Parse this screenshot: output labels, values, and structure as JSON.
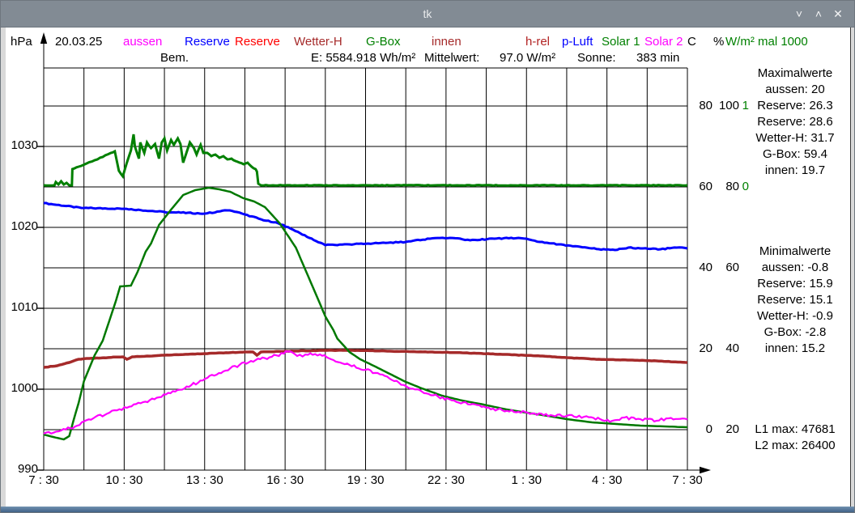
{
  "window": {
    "title": "tk",
    "controls": {
      "minimize": "˅",
      "maximize": "˄",
      "close": "✕"
    }
  },
  "header": {
    "unit_left": "hPa",
    "date": "20.03.25",
    "legend": [
      {
        "label": "aussen",
        "color": "#ff00ff"
      },
      {
        "label": "Reserve",
        "color": "#0000ff"
      },
      {
        "label": "Reserve",
        "color": "#ff0000"
      },
      {
        "label": "Wetter-H",
        "color": "#a52a2a"
      },
      {
        "label": "G-Box",
        "color": "#008000"
      },
      {
        "label": "innen",
        "color": "#a52a2a"
      },
      {
        "label": "h-rel",
        "color": "#b22222"
      },
      {
        "label": "p-Luft",
        "color": "#0000ff"
      },
      {
        "label": "Solar 1",
        "color": "#008000"
      },
      {
        "label": "Solar 2",
        "color": "#ff00ff"
      },
      {
        "label": "C",
        "color": "#000000"
      },
      {
        "label": "%",
        "color": "#000000"
      },
      {
        "label": "W/m² mal 1000",
        "color": "#008000"
      }
    ],
    "row2": {
      "bem": "Bem.",
      "energy": "E: 5584.918 Wh/m²",
      "mittelwert_label": "Mittelwert:",
      "mittelwert_value": "97.0 W/m²",
      "sonne_label": "Sonne:",
      "sonne_value": "383 min"
    }
  },
  "right_panel": {
    "max_title": "Maximalwerte",
    "max_values": [
      "aussen: 20",
      "Reserve: 26.3",
      "Reserve: 28.6",
      "Wetter-H: 31.7",
      "G-Box: 59.4",
      "innen: 19.7"
    ],
    "min_title": "Minimalwerte",
    "min_values": [
      "aussen: -0.8",
      "Reserve: 15.9",
      "Reserve: 15.1",
      "Wetter-H: -0.9",
      "G-Box: -2.8",
      "innen: 15.2"
    ],
    "l1": "L1 max: 47681",
    "l2": "L2 max: 26400"
  },
  "chart_data": {
    "type": "line",
    "grid": true,
    "x_axis": {
      "unit": "time",
      "range_hours": [
        7.5,
        31.5
      ],
      "labels": [
        "7 : 30",
        "10 : 30",
        "13 : 30",
        "16 : 30",
        "19 : 30",
        "22 : 30",
        "1 : 30",
        "4 : 30",
        "7 : 30"
      ],
      "label_hours": [
        7.5,
        10.5,
        13.5,
        16.5,
        19.5,
        22.5,
        25.5,
        28.5,
        31.5
      ],
      "gridline_step_hours": 1.5
    },
    "y_left": {
      "unit": "hPa",
      "ticks": [
        990,
        1000,
        1010,
        1020,
        1030
      ],
      "range": [
        990,
        1039.5
      ],
      "grid_step": 5
    },
    "y_right": {
      "c_axis": {
        "unit": "C",
        "ticks": [
          0,
          20,
          40,
          60,
          80
        ]
      },
      "pct_axis": {
        "unit": "%",
        "ticks": [
          20,
          40,
          60,
          80,
          100
        ]
      },
      "solar_axis": {
        "unit": "W/m² mal 1000",
        "ticks": [
          0,
          1
        ],
        "color": "#008000"
      }
    },
    "right_scale_rows": [
      {
        "c": 80,
        "pct": 100,
        "solar": "1"
      },
      {
        "c": 60,
        "pct": 80,
        "solar": "0"
      },
      {
        "c": 40,
        "pct": 60,
        "solar": ""
      },
      {
        "c": 20,
        "pct": 40,
        "solar": ""
      },
      {
        "c": 0,
        "pct": 20,
        "solar": ""
      }
    ],
    "series": [
      {
        "id": "p-luft",
        "name": "p-Luft",
        "axis": "hpa",
        "color": "#0000ff",
        "width": 3,
        "jitter": 0.06,
        "points": [
          [
            7.5,
            1023.0
          ],
          [
            8.9,
            1022.4
          ],
          [
            10.5,
            1022.3
          ],
          [
            12.0,
            1021.9
          ],
          [
            13.5,
            1021.7
          ],
          [
            14.35,
            1022.1
          ],
          [
            14.7,
            1021.9
          ],
          [
            15.0,
            1021.6
          ],
          [
            15.6,
            1021.0
          ],
          [
            16.25,
            1020.5
          ],
          [
            16.8,
            1019.7
          ],
          [
            17.4,
            1018.7
          ],
          [
            18.0,
            1017.8
          ],
          [
            18.9,
            1017.9
          ],
          [
            19.6,
            1018.0
          ],
          [
            21.0,
            1018.2
          ],
          [
            21.9,
            1018.6
          ],
          [
            22.65,
            1018.7
          ],
          [
            23.4,
            1018.4
          ],
          [
            24.3,
            1018.6
          ],
          [
            25.2,
            1018.7
          ],
          [
            25.6,
            1018.5
          ],
          [
            26.0,
            1018.2
          ],
          [
            26.7,
            1017.9
          ],
          [
            27.5,
            1017.6
          ],
          [
            28.2,
            1017.3
          ],
          [
            28.8,
            1017.2
          ],
          [
            29.3,
            1017.5
          ],
          [
            29.75,
            1017.4
          ],
          [
            30.5,
            1017.3
          ],
          [
            31.1,
            1017.5
          ],
          [
            31.5,
            1017.4
          ]
        ]
      },
      {
        "id": "innen",
        "name": "innen",
        "axis": "c",
        "color": "#a52a2a",
        "width": 3.5,
        "jitter": 0.05,
        "points": [
          [
            7.5,
            15.4
          ],
          [
            8.0,
            15.8
          ],
          [
            8.45,
            16.6
          ],
          [
            8.8,
            17.4
          ],
          [
            9.2,
            17.6
          ],
          [
            10.45,
            18.0
          ],
          [
            10.6,
            17.4
          ],
          [
            10.8,
            18.0
          ],
          [
            12.0,
            18.4
          ],
          [
            13.5,
            18.8
          ],
          [
            15.0,
            19.2
          ],
          [
            15.3,
            19.2
          ],
          [
            15.45,
            18.4
          ],
          [
            15.6,
            19.2
          ],
          [
            16.55,
            19.4
          ],
          [
            18.0,
            19.6
          ],
          [
            19.2,
            19.6
          ],
          [
            20.4,
            19.4
          ],
          [
            21.9,
            19.2
          ],
          [
            23.1,
            19.0
          ],
          [
            24.6,
            18.6
          ],
          [
            26.1,
            18.2
          ],
          [
            27.0,
            17.8
          ],
          [
            28.2,
            17.4
          ],
          [
            29.45,
            17.2
          ],
          [
            30.35,
            17.0
          ],
          [
            31.5,
            16.6
          ]
        ]
      },
      {
        "id": "g-box",
        "name": "G-Box",
        "axis": "c",
        "color": "#007800",
        "width": 2.5,
        "jitter": 0,
        "points": [
          [
            7.5,
            -1.2
          ],
          [
            7.85,
            -1.8
          ],
          [
            8.25,
            -2.4
          ],
          [
            8.45,
            -1.6
          ],
          [
            8.6,
            2.0
          ],
          [
            8.8,
            6.6
          ],
          [
            9.0,
            12.0
          ],
          [
            9.4,
            18.4
          ],
          [
            9.7,
            22.0
          ],
          [
            9.95,
            27.0
          ],
          [
            10.2,
            32.0
          ],
          [
            10.35,
            35.4
          ],
          [
            10.75,
            35.6
          ],
          [
            11.0,
            39.0
          ],
          [
            11.3,
            44.0
          ],
          [
            11.5,
            46.0
          ],
          [
            11.8,
            50.6
          ],
          [
            12.25,
            54.4
          ],
          [
            12.7,
            58.0
          ],
          [
            13.15,
            59.2
          ],
          [
            13.65,
            59.8
          ],
          [
            14.05,
            59.4
          ],
          [
            14.45,
            58.8
          ],
          [
            14.95,
            57.2
          ],
          [
            15.35,
            56.4
          ],
          [
            15.75,
            55.0
          ],
          [
            16.3,
            51.0
          ],
          [
            16.9,
            45.0
          ],
          [
            17.55,
            35.0
          ],
          [
            18.0,
            28.0
          ],
          [
            18.3,
            24.6
          ],
          [
            18.45,
            22.5
          ],
          [
            18.9,
            19.2
          ],
          [
            19.3,
            17.4
          ],
          [
            19.8,
            15.8
          ],
          [
            20.4,
            13.8
          ],
          [
            21.0,
            11.8
          ],
          [
            21.6,
            10.2
          ],
          [
            22.35,
            8.4
          ],
          [
            23.1,
            7.2
          ],
          [
            23.9,
            6.2
          ],
          [
            24.75,
            5.0
          ],
          [
            25.5,
            4.2
          ],
          [
            26.3,
            3.4
          ],
          [
            27.0,
            2.6
          ],
          [
            27.95,
            1.8
          ],
          [
            28.85,
            1.4
          ],
          [
            29.75,
            1.0
          ],
          [
            30.65,
            0.8
          ],
          [
            31.5,
            0.6
          ]
        ]
      },
      {
        "id": "solar-1",
        "name": "Solar 1",
        "axis": "solar",
        "color": "#008000",
        "width": 3,
        "jitter": 0.004,
        "points": [
          [
            7.5,
            0.02
          ],
          [
            7.9,
            0.02
          ],
          [
            7.95,
            0.06
          ],
          [
            8.05,
            0.03
          ],
          [
            8.15,
            0.07
          ],
          [
            8.25,
            0.03
          ],
          [
            8.35,
            0.05
          ],
          [
            8.45,
            0.02
          ],
          [
            8.55,
            0.02
          ],
          [
            8.57,
            0.22
          ],
          [
            8.8,
            0.25
          ],
          [
            9.1,
            0.29
          ],
          [
            9.4,
            0.33
          ],
          [
            9.7,
            0.37
          ],
          [
            10.0,
            0.42
          ],
          [
            10.15,
            0.44
          ],
          [
            10.3,
            0.2
          ],
          [
            10.45,
            0.13
          ],
          [
            10.6,
            0.3
          ],
          [
            10.75,
            0.45
          ],
          [
            10.85,
            0.65
          ],
          [
            10.9,
            0.5
          ],
          [
            11.05,
            0.35
          ],
          [
            11.1,
            0.55
          ],
          [
            11.25,
            0.42
          ],
          [
            11.35,
            0.55
          ],
          [
            11.5,
            0.48
          ],
          [
            11.65,
            0.53
          ],
          [
            11.8,
            0.35
          ],
          [
            11.9,
            0.55
          ],
          [
            12.0,
            0.6
          ],
          [
            12.1,
            0.45
          ],
          [
            12.25,
            0.58
          ],
          [
            12.35,
            0.52
          ],
          [
            12.5,
            0.6
          ],
          [
            12.6,
            0.53
          ],
          [
            12.7,
            0.3
          ],
          [
            12.85,
            0.45
          ],
          [
            12.95,
            0.55
          ],
          [
            13.1,
            0.48
          ],
          [
            13.2,
            0.4
          ],
          [
            13.35,
            0.52
          ],
          [
            13.45,
            0.42
          ],
          [
            13.6,
            0.42
          ],
          [
            13.75,
            0.38
          ],
          [
            13.9,
            0.4
          ],
          [
            14.05,
            0.36
          ],
          [
            14.2,
            0.38
          ],
          [
            14.35,
            0.34
          ],
          [
            14.5,
            0.35
          ],
          [
            14.65,
            0.32
          ],
          [
            14.8,
            0.3
          ],
          [
            14.95,
            0.28
          ],
          [
            15.1,
            0.3
          ],
          [
            15.25,
            0.25
          ],
          [
            15.4,
            0.22
          ],
          [
            15.45,
            0.19
          ],
          [
            15.5,
            0.04
          ],
          [
            15.6,
            0.02
          ],
          [
            16.5,
            0.02
          ],
          [
            31.5,
            0.02
          ]
        ]
      },
      {
        "id": "aussen",
        "name": "aussen",
        "axis": "c",
        "color": "#ff00ff",
        "width": 2.2,
        "jitter": 0.35,
        "points": [
          [
            7.5,
            -1.0
          ],
          [
            8.15,
            -0.2
          ],
          [
            8.75,
            1.0
          ],
          [
            9.35,
            2.8
          ],
          [
            9.95,
            4.2
          ],
          [
            10.6,
            5.4
          ],
          [
            11.2,
            6.8
          ],
          [
            11.8,
            8.0
          ],
          [
            12.4,
            9.4
          ],
          [
            13.0,
            11.0
          ],
          [
            13.6,
            12.8
          ],
          [
            14.2,
            14.4
          ],
          [
            14.8,
            16.0
          ],
          [
            15.4,
            17.2
          ],
          [
            16.0,
            18.0
          ],
          [
            16.45,
            18.8
          ],
          [
            16.6,
            19.3
          ],
          [
            16.95,
            18.2
          ],
          [
            17.35,
            18.5
          ],
          [
            17.8,
            18.6
          ],
          [
            18.3,
            17.2
          ],
          [
            18.9,
            16.0
          ],
          [
            19.5,
            14.8
          ],
          [
            19.95,
            14.0
          ],
          [
            20.4,
            12.6
          ],
          [
            21.0,
            10.8
          ],
          [
            21.6,
            9.4
          ],
          [
            22.2,
            8.2
          ],
          [
            22.8,
            7.2
          ],
          [
            23.4,
            6.2
          ],
          [
            24.0,
            5.4
          ],
          [
            24.6,
            4.8
          ],
          [
            25.2,
            4.4
          ],
          [
            25.8,
            4.0
          ],
          [
            26.4,
            3.6
          ],
          [
            27.0,
            3.4
          ],
          [
            27.65,
            3.2
          ],
          [
            28.25,
            2.6
          ],
          [
            28.7,
            2.2
          ],
          [
            29.15,
            3.0
          ],
          [
            29.75,
            2.6
          ],
          [
            30.35,
            2.2
          ],
          [
            30.8,
            2.8
          ],
          [
            31.5,
            2.5
          ]
        ]
      }
    ]
  }
}
